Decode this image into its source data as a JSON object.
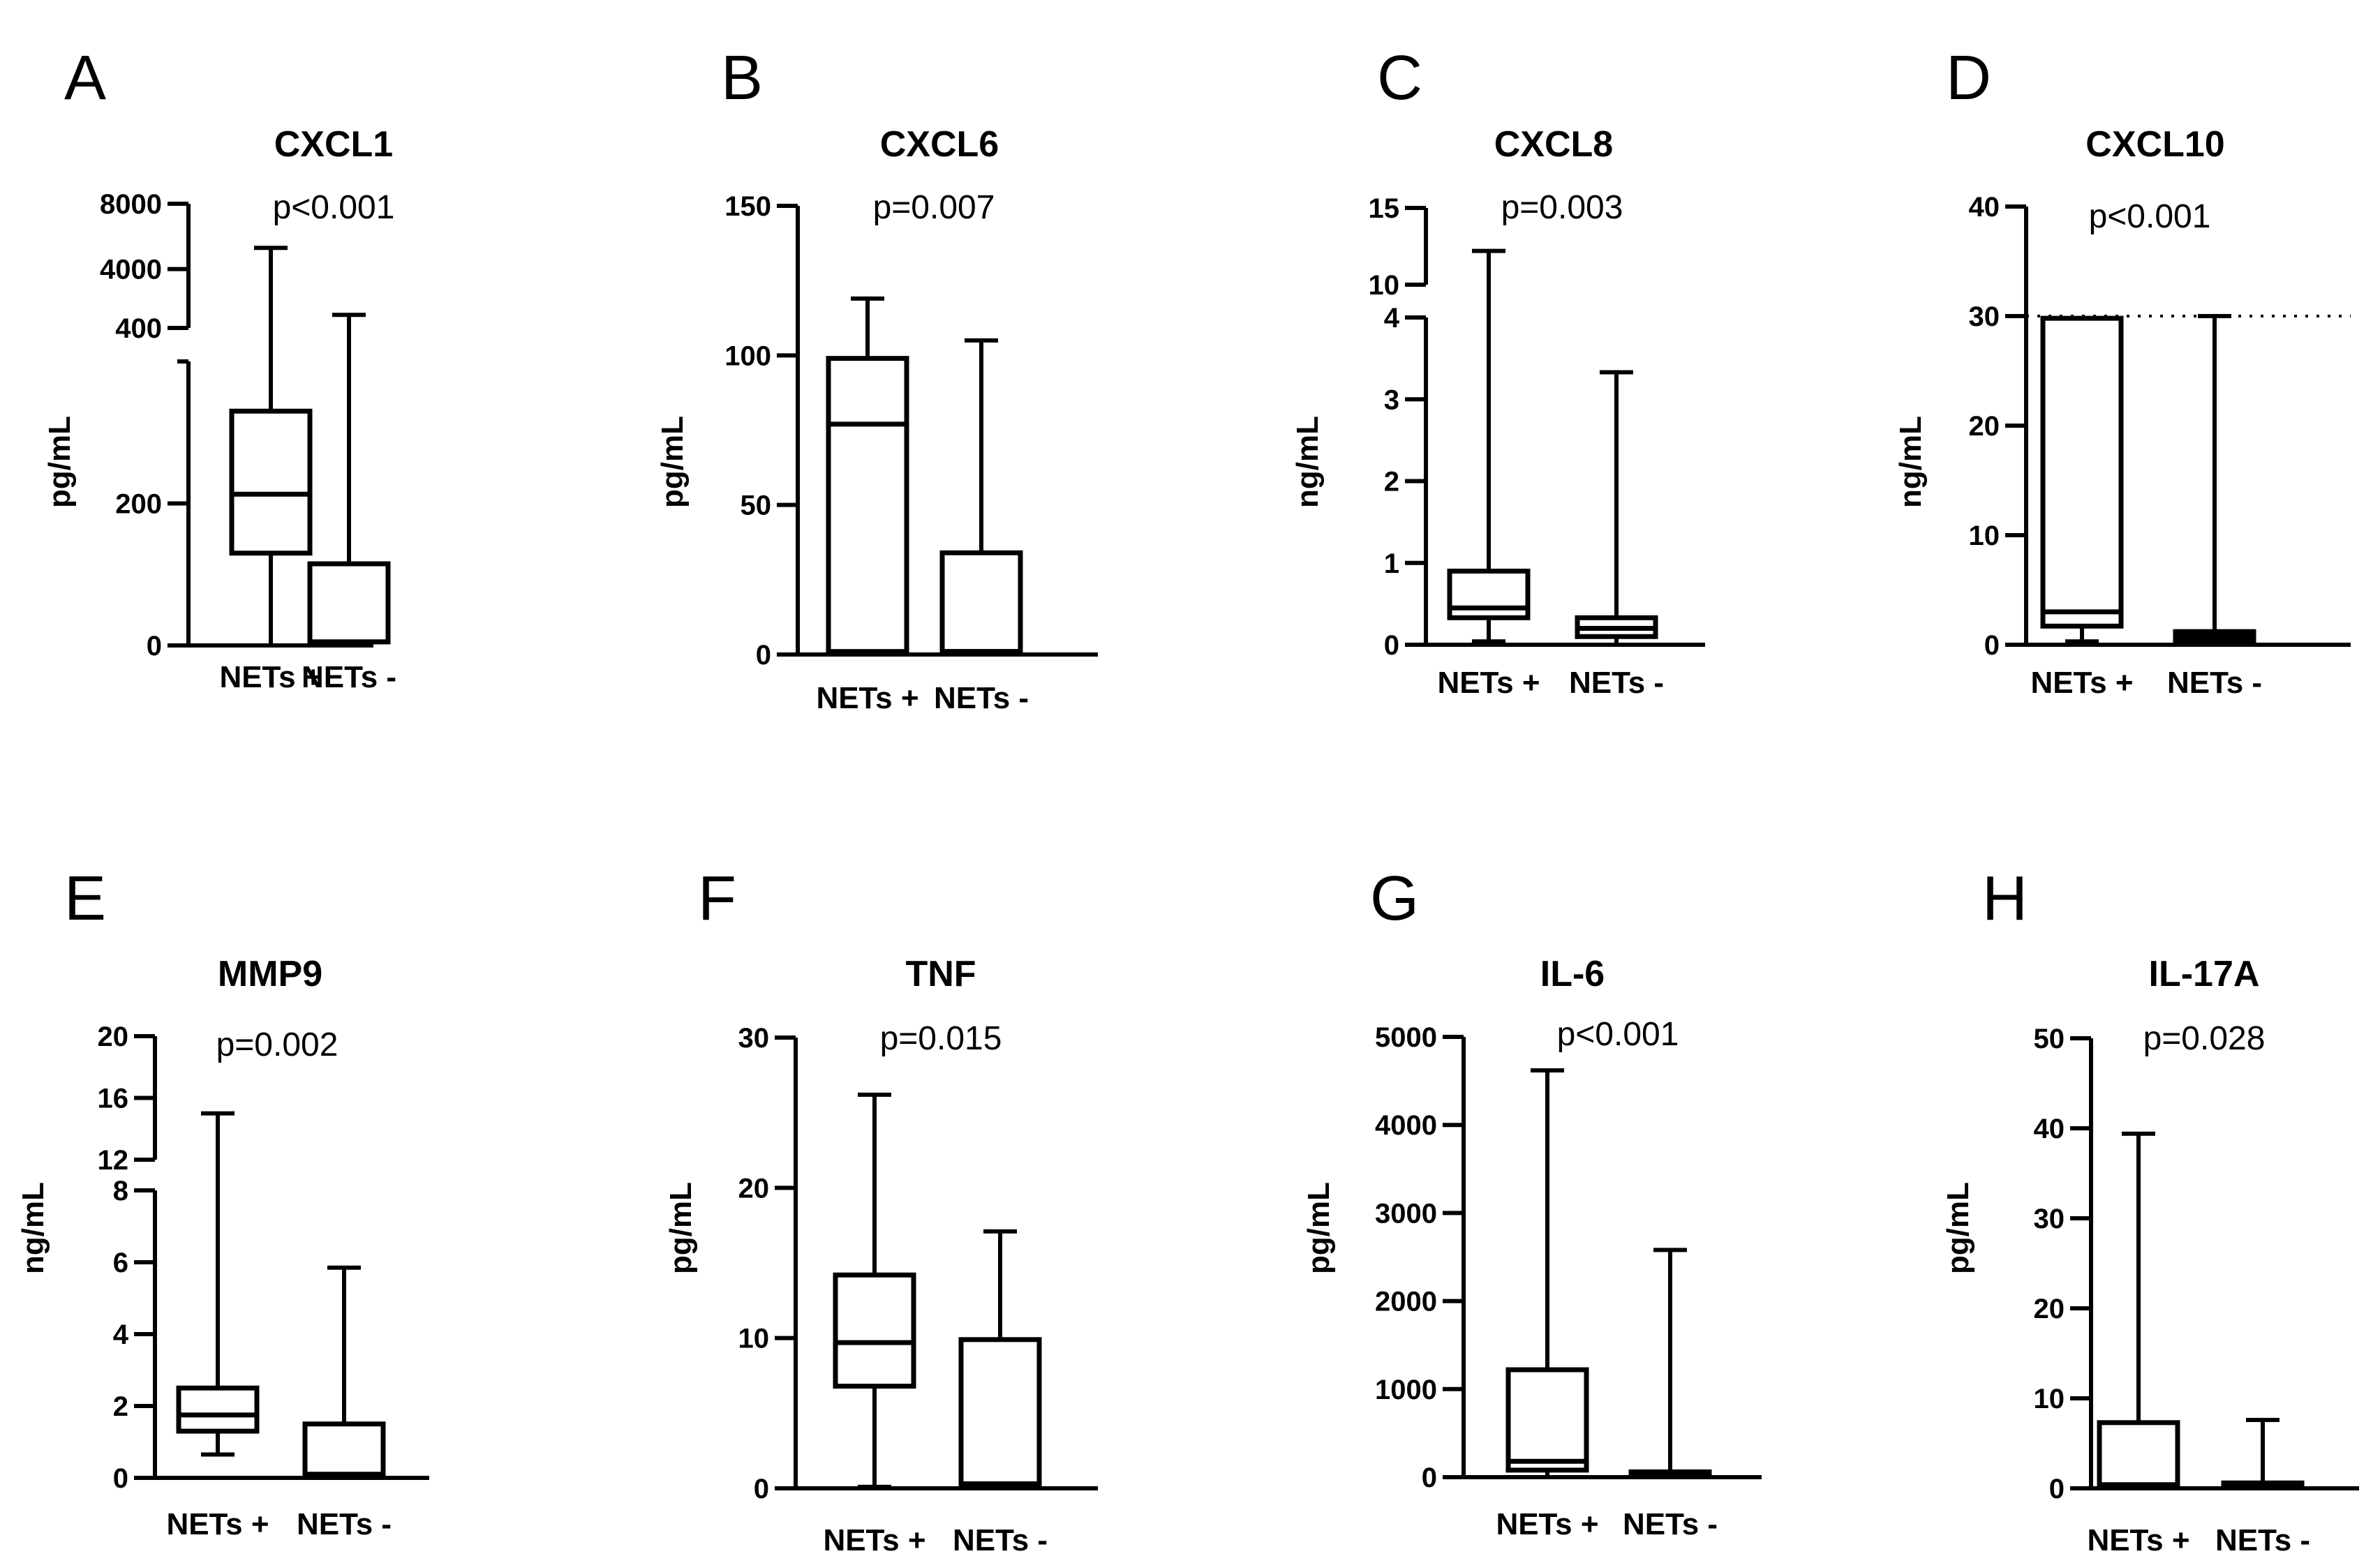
{
  "figure_title": "",
  "chart_data": [
    {
      "panel": "A",
      "type": "box",
      "title": "CXCL1",
      "p_value": "p<0.001",
      "ylabel": "pg/mL",
      "categories": [
        "NETs +",
        "NETs -"
      ],
      "y_segments": [
        {
          "range": [
            0,
            400
          ],
          "ticks": [
            0,
            200,
            400
          ],
          "tick_labels": [
            "0",
            "200",
            "400"
          ]
        },
        {
          "range": [
            400,
            8000
          ],
          "ticks": [
            4000,
            8000
          ],
          "tick_labels": [
            "4000",
            "8000"
          ]
        }
      ],
      "boxes": [
        {
          "whisker_low": 0,
          "q1": 130,
          "median": 213,
          "q3": 330,
          "whisker_high": 5300
        },
        {
          "whisker_low": 0,
          "q1": 5,
          "median": 5,
          "q3": 115,
          "whisker_high": 1200
        }
      ],
      "reference_line": null
    },
    {
      "panel": "B",
      "type": "box",
      "title": "CXCL6",
      "p_value": "p=0.007",
      "ylabel": "pg/mL",
      "categories": [
        "NETs +",
        "NETs -"
      ],
      "y_segments": [
        {
          "range": [
            0,
            150
          ],
          "ticks": [
            0,
            50,
            100,
            150
          ],
          "tick_labels": [
            "0",
            "50",
            "100",
            "150"
          ]
        }
      ],
      "boxes": [
        {
          "whisker_low": 0,
          "q1": 1,
          "median": 77,
          "q3": 99,
          "whisker_high": 119
        },
        {
          "whisker_low": 0,
          "q1": 1,
          "median": 1,
          "q3": 34,
          "whisker_high": 105
        }
      ],
      "reference_line": null
    },
    {
      "panel": "C",
      "type": "box",
      "title": "CXCL8",
      "p_value": "p=0.003",
      "ylabel": "ng/mL",
      "categories": [
        "NETs +",
        "NETs -"
      ],
      "y_segments": [
        {
          "range": [
            0,
            4
          ],
          "ticks": [
            0,
            1,
            2,
            3,
            4
          ],
          "tick_labels": [
            "0",
            "1",
            "2",
            "3",
            "4"
          ]
        },
        {
          "range": [
            10,
            15
          ],
          "ticks": [
            10,
            15
          ],
          "tick_labels": [
            "10",
            "15"
          ]
        }
      ],
      "boxes": [
        {
          "whisker_low": 0.04,
          "q1": 0.33,
          "median": 0.45,
          "q3": 0.9,
          "whisker_high": 12.2
        },
        {
          "whisker_low": 0,
          "q1": 0.1,
          "median": 0.2,
          "q3": 0.33,
          "whisker_high": 3.33
        }
      ],
      "reference_line": null
    },
    {
      "panel": "D",
      "type": "box",
      "title": "CXCL10",
      "p_value": "p<0.001",
      "ylabel": "ng/mL",
      "categories": [
        "NETs +",
        "NETs -"
      ],
      "y_segments": [
        {
          "range": [
            0,
            40
          ],
          "ticks": [
            0,
            10,
            20,
            30,
            40
          ],
          "tick_labels": [
            "0",
            "10",
            "20",
            "30",
            "40"
          ]
        }
      ],
      "boxes": [
        {
          "whisker_low": 0.3,
          "q1": 1.7,
          "median": 3,
          "q3": 29.8,
          "whisker_high": 29.8
        },
        {
          "whisker_low": 0,
          "q1": 0.4,
          "median": 0.8,
          "q3": 1.2,
          "whisker_high": 30
        }
      ],
      "reference_line": 30
    },
    {
      "panel": "E",
      "type": "box",
      "title": "MMP9",
      "p_value": "p=0.002",
      "ylabel": "ng/mL",
      "categories": [
        "NETs +",
        "NETs -"
      ],
      "y_segments": [
        {
          "range": [
            0,
            8
          ],
          "ticks": [
            0,
            2,
            4,
            6,
            8
          ],
          "tick_labels": [
            "0",
            "2",
            "4",
            "6",
            "8"
          ]
        },
        {
          "range": [
            12,
            20
          ],
          "ticks": [
            12,
            16,
            20
          ],
          "tick_labels": [
            "12",
            "16",
            "20"
          ]
        }
      ],
      "boxes": [
        {
          "whisker_low": 0.65,
          "q1": 1.3,
          "median": 1.75,
          "q3": 2.5,
          "whisker_high": 15
        },
        {
          "whisker_low": 0,
          "q1": 0.1,
          "median": 0.1,
          "q3": 1.5,
          "whisker_high": 5.85
        }
      ],
      "reference_line": null
    },
    {
      "panel": "F",
      "type": "box",
      "title": "TNF",
      "p_value": "p=0.015",
      "ylabel": "pg/mL",
      "categories": [
        "NETs +",
        "NETs -"
      ],
      "y_segments": [
        {
          "range": [
            0,
            30
          ],
          "ticks": [
            0,
            10,
            20,
            30
          ],
          "tick_labels": [
            "0",
            "10",
            "20",
            "30"
          ]
        }
      ],
      "boxes": [
        {
          "whisker_low": 0.1,
          "q1": 6.8,
          "median": 9.7,
          "q3": 14.2,
          "whisker_high": 26.2
        },
        {
          "whisker_low": 0,
          "q1": 0.3,
          "median": 0.3,
          "q3": 9.9,
          "whisker_high": 17.1
        }
      ],
      "reference_line": null
    },
    {
      "panel": "G",
      "type": "box",
      "title": "IL-6",
      "p_value": "p<0.001",
      "ylabel": "pg/mL",
      "categories": [
        "NETs +",
        "NETs -"
      ],
      "y_segments": [
        {
          "range": [
            0,
            5000
          ],
          "ticks": [
            0,
            1000,
            2000,
            3000,
            4000,
            5000
          ],
          "tick_labels": [
            "0",
            "1000",
            "2000",
            "3000",
            "4000",
            "5000"
          ]
        }
      ],
      "boxes": [
        {
          "whisker_low": 0,
          "q1": 80,
          "median": 180,
          "q3": 1220,
          "whisker_high": 4620
        },
        {
          "whisker_low": 0,
          "q1": 5,
          "median": 30,
          "q3": 60,
          "whisker_high": 2580
        }
      ],
      "reference_line": null
    },
    {
      "panel": "H",
      "type": "box",
      "title": "IL-17A",
      "p_value": "p=0.028",
      "ylabel": "pg/mL",
      "categories": [
        "NETs +",
        "NETs -"
      ],
      "y_segments": [
        {
          "range": [
            0,
            50
          ],
          "ticks": [
            0,
            10,
            20,
            30,
            40,
            50
          ],
          "tick_labels": [
            "0",
            "10",
            "20",
            "30",
            "40",
            "50"
          ]
        }
      ],
      "boxes": [
        {
          "whisker_low": 0,
          "q1": 0.4,
          "median": 0.4,
          "q3": 7.3,
          "whisker_high": 39.4
        },
        {
          "whisker_low": 0,
          "q1": 0.2,
          "median": 0.2,
          "q3": 0.6,
          "whisker_high": 7.6
        }
      ],
      "reference_line": null
    }
  ]
}
